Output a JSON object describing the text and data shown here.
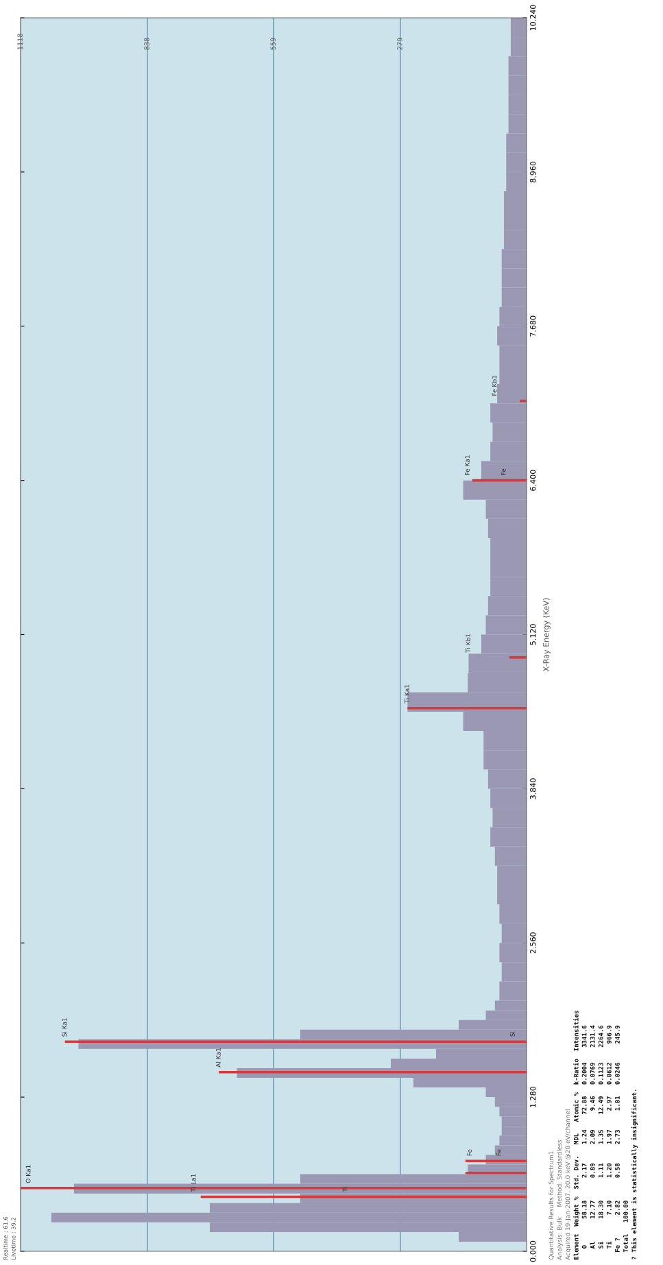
{
  "chart_data": {
    "type": "histogram",
    "orientation": "horizontal",
    "xlabel": null,
    "ylabel": "X-Ray Energy (KeV)",
    "bins": [
      0.08,
      0.16,
      0.24,
      0.32,
      0.4,
      0.48,
      0.56,
      0.64,
      0.72,
      0.8,
      0.88,
      0.96,
      1.04,
      1.12,
      1.2,
      1.28,
      1.36,
      1.44,
      1.52,
      1.6,
      1.68,
      1.76,
      1.84,
      1.92,
      2.0,
      2.08,
      2.24,
      2.4,
      2.56,
      2.72,
      2.88,
      3.04,
      3.2,
      3.36,
      3.52,
      3.68,
      3.84,
      4.0,
      4.16,
      4.32,
      4.48,
      4.64,
      4.8,
      4.96,
      5.12,
      5.28,
      5.44,
      5.6,
      5.76,
      5.92,
      6.08,
      6.24,
      6.4,
      6.56,
      6.72,
      6.88,
      7.04,
      7.2,
      7.36,
      7.52,
      7.68,
      7.84,
      8.0,
      8.16,
      8.32,
      8.48,
      8.64,
      8.8,
      8.96,
      9.12,
      9.28,
      9.44,
      9.6,
      9.76,
      9.92,
      10.08,
      10.24
    ],
    "series": [
      {
        "color": "#9b98b3",
        "values": [
          150,
          700,
          1050,
          700,
          500,
          1000,
          500,
          130,
          90,
          70,
          60,
          55,
          55,
          60,
          70,
          90,
          250,
          640,
          300,
          200,
          990,
          500,
          150,
          90,
          70,
          60,
          55,
          60,
          55,
          60,
          65,
          65,
          70,
          80,
          75,
          80,
          85,
          95,
          95,
          140,
          263,
          130,
          128,
          100,
          90,
          85,
          80,
          80,
          80,
          85,
          90,
          140,
          100,
          80,
          75,
          80,
          65,
          60,
          60,
          65,
          60,
          55,
          55,
          55,
          50,
          50,
          50,
          45,
          45,
          45,
          40,
          40,
          40,
          40,
          35,
          35
        ]
      },
      {
        "type": "bar",
        "color": "#d63a3a",
        "x": [
          0.452,
          0.525,
          0.65,
          0.75,
          1.487,
          1.74,
          4.51,
          4.93,
          6.4,
          7.06
        ],
        "values": [
          720,
          1118,
          135,
          135,
          680,
          1020,
          263,
          38,
          120,
          15
        ]
      }
    ],
    "xlim": [
      1118,
      0
    ],
    "xticks": [
      1118,
      838,
      559,
      279
    ],
    "ylim": [
      0,
      10.24
    ],
    "yticks": [
      {
        "value": 0,
        "label": "0.000"
      },
      {
        "value": 1.28,
        "label": "1.280"
      },
      {
        "value": 2.56,
        "label": "2.560"
      },
      {
        "value": 3.84,
        "label": "3.840"
      },
      {
        "value": 5.12,
        "label": "5.120"
      },
      {
        "value": 6.4,
        "label": "6.400"
      },
      {
        "value": 7.68,
        "label": "7.680"
      },
      {
        "value": 8.96,
        "label": "8.960"
      },
      {
        "value": 10.24,
        "label": "10.240"
      }
    ],
    "grid": "x",
    "annotations": [
      {
        "text": "O Ka1",
        "x": 1100,
        "y": 0.525
      },
      {
        "text": "Ti La1",
        "x": 735,
        "y": 0.452
      },
      {
        "text": "Ti",
        "x": 400,
        "y": 0.452
      },
      {
        "text": "Fe",
        "x": 125,
        "y": 0.75
      },
      {
        "text": "Fe",
        "x": 60,
        "y": 0.75
      },
      {
        "text": "Al Ka1",
        "x": 680,
        "y": 1.487
      },
      {
        "text": "Si Ka1",
        "x": 1020,
        "y": 1.74
      },
      {
        "text": "Si",
        "x": 30,
        "y": 1.74
      },
      {
        "text": "Ti Ka1",
        "x": 263,
        "y": 4.51
      },
      {
        "text": "Ti Kb1",
        "x": 128,
        "y": 4.93
      },
      {
        "text": "Fe Ka1",
        "x": 130,
        "y": 6.4
      },
      {
        "text": "Fe",
        "x": 50,
        "y": 6.4
      },
      {
        "text": "Fe Kb1",
        "x": 70,
        "y": 7.06
      },
      "Realtime : 61.6",
      "Livetime : 39.2",
      "Quantitative Results for Spectrum1",
      "Analysis: Bulk     Method: Standardless",
      "Acquired 19-Jan-2007, 20.0 keV @20 eV/channel",
      "Element  Weight %  Std. Dev.   MDL   Atomic %  k-Ratio  Intensities",
      "   O       58.18      2.17     1.24    72.88   0.2004    3341.6",
      "   Al      12.77      0.89     2.09     9.46   0.0769    2131.4",
      "   Si      18.30      1.11     1.35    12.49   0.1123    2264.6",
      "   Ti       7.10      1.20     1.97     2.97   0.0612     966.9",
      "  Fe ?      2.82      0.58     2.73     1.01   0.0246     245.9",
      "  Total   100.00",
      "? This element is statistically insignificant."
    ]
  }
}
